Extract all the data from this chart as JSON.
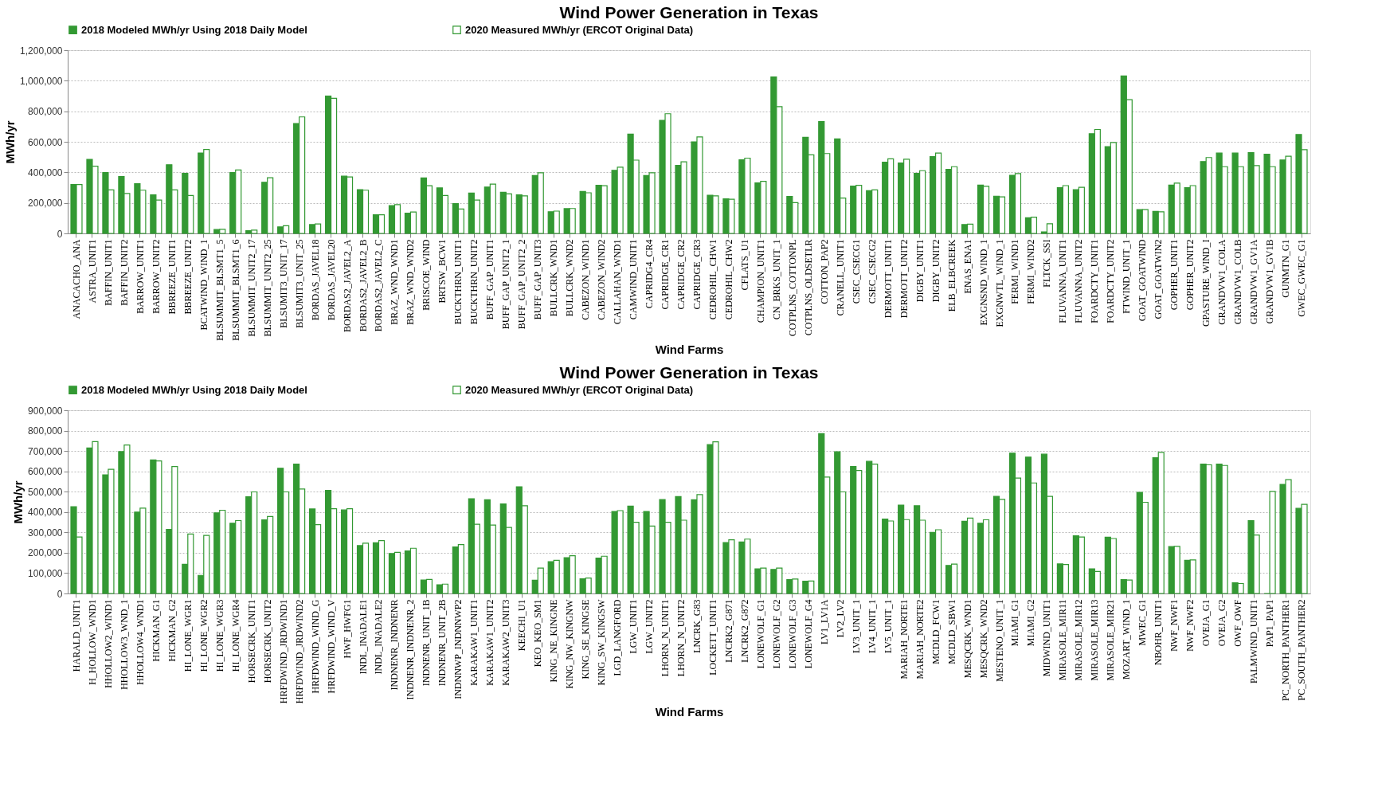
{
  "chart_data": [
    {
      "type": "bar",
      "title": "Wind Power Generation in Texas",
      "xlabel": "Wind Farms",
      "ylabel": "MWh/yr",
      "ylim": [
        0,
        1200000
      ],
      "yticks": [
        0,
        {
          "value": 200000,
          "label": "200,000"
        },
        {
          "value": 400000,
          "label": "400,000"
        },
        {
          "value": 600000,
          "label": "600,000"
        },
        {
          "value": 800000,
          "label": "800,000"
        },
        {
          "value": 1000000,
          "label": "1,000,000"
        },
        {
          "value": 1200000,
          "label": "1,200,000"
        }
      ],
      "grid": "y",
      "legend": "top",
      "categories": [
        "ANACACHO_ANA",
        "ASTRA_UNIT1",
        "BAFFIN_UNIT1",
        "BAFFIN_UNIT2",
        "BARROW_UNIT1",
        "BARROW_UNIT2",
        "BBREEZE_UNIT1",
        "BBREEZE_UNIT2",
        "BCATWIND_WIND_1",
        "BLSUMMIT_BLSMT1_5",
        "BLSUMMIT_BLSMT1_6",
        "BLSUMMIT_UNIT2_17",
        "BLSUMMIT_UNIT2_25",
        "BLSUMIT3_UNIT_17",
        "BLSUMIT3_UNIT_25",
        "BORDAS_JAVEL18",
        "BORDAS_JAVEL20",
        "BORDAS2_JAVEL2_A",
        "BORDAS2_JAVEL2_B",
        "BORDAS2_JAVEL2_C",
        "BRAZ_WND_WND1",
        "BRAZ_WND_WND2",
        "BRISCOE_WIND",
        "BRTSW_BCW1",
        "BUCKTHRN_UNIT1",
        "BUCKTHRN_UNIT2",
        "BUFF_GAP_UNIT1",
        "BUFF_GAP_UNIT2_1",
        "BUFF_GAP_UNIT2_2",
        "BUFF_GAP_UNIT3",
        "BULLCRK_WND1",
        "BULLCRK_WND2",
        "CABEZON_WIND1",
        "CABEZON_WIND2",
        "CALLAHAN_WND1",
        "CAMWIND_UNIT1",
        "CAPRIDG4_CR4",
        "CAPRIDGE_CR1",
        "CAPRIDGE_CR2",
        "CAPRIDGE_CR3",
        "CEDROHIL_CHW1",
        "CEDROHIL_CHW2",
        "CFLATS_U1",
        "CHAMPION_UNIT1",
        "CN_BRKS_UNIT_1",
        "COTPLNS_COTTONPL",
        "COTPLNS_OLDSETLR",
        "COTTON_PAP2",
        "CRANELL_UNIT1",
        "CSEC_CSECG1",
        "CSEC_CSECG2",
        "DERMOTT_UNIT1",
        "DERMOTT_UNIT2",
        "DIGBY_UNIT1",
        "DIGBY_UNIT2",
        "ELB_ELBCREEK",
        "ENAS_ENA1",
        "EXGNSND_WIND_1",
        "EXGNWTL_WIND_1",
        "FERMI_WIND1",
        "FERMI_WIND2",
        "FLTCK_SSI",
        "FLUVANNA_UNIT1",
        "FLUVANNA_UNIT2",
        "FOARDCTY_UNIT1",
        "FOARDCTY_UNIT2",
        "FTWIND_UNIT_1",
        "GOAT_GOATWIND",
        "GOAT_GOATWIN2",
        "GOPHER_UNIT1",
        "GOPHER_UNIT2",
        "GPASTURE_WIND_I",
        "GRANDVW1_COLA",
        "GRANDVW1_COLB",
        "GRANDVW1_GV1A",
        "GRANDVW1_GV1B",
        "GUNMTN_G1",
        "GWEC_GWEC_G1"
      ],
      "series": [
        {
          "name": "2018 Modeled MWh/yr Using 2018 Daily Model",
          "color": "#339933",
          "values": [
            320000,
            485000,
            398000,
            373000,
            325000,
            253000,
            450000,
            393000,
            527000,
            25000,
            398000,
            18000,
            335000,
            43000,
            720000,
            58000,
            900000,
            375000,
            287000,
            122000,
            182000,
            133000,
            363000,
            298000,
            195000,
            264000,
            304000,
            269000,
            253000,
            379000,
            142000,
            162000,
            275000,
            315000,
            413000,
            650000,
            379000,
            741000,
            445000,
            600000,
            250000,
            227000,
            482000,
            331000,
            1025000,
            242000,
            629000,
            733000,
            619000,
            310000,
            280000,
            466000,
            461000,
            394000,
            503000,
            419000,
            58000,
            316000,
            244000,
            381000,
            102000,
            10000,
            300000,
            286000,
            653000,
            568000,
            1031000,
            156000,
            144000,
            316000,
            300000,
            471000,
            526000,
            526000,
            529000,
            519000,
            481000,
            648000
          ]
        },
        {
          "name": "2020 Measured MWh/yr (ERCOT Original Data)",
          "color": "#ffffff",
          "values": [
            320000,
            440000,
            285000,
            262000,
            283000,
            218000,
            285000,
            248000,
            550000,
            27000,
            415000,
            22000,
            365000,
            50000,
            763000,
            62000,
            885000,
            370000,
            283000,
            122000,
            188000,
            140000,
            312000,
            248000,
            160000,
            218000,
            323000,
            259000,
            246000,
            397000,
            146000,
            163000,
            266000,
            312000,
            434000,
            480000,
            397000,
            784000,
            469000,
            632000,
            246000,
            224000,
            493000,
            341000,
            830000,
            202000,
            515000,
            523000,
            232000,
            315000,
            285000,
            489000,
            486000,
            411000,
            526000,
            437000,
            61000,
            308000,
            239000,
            392000,
            106000,
            63000,
            313000,
            302000,
            681000,
            595000,
            876000,
            156000,
            142000,
            329000,
            313000,
            497000,
            437000,
            437000,
            444000,
            437000,
            505000,
            548000
          ]
        }
      ]
    },
    {
      "type": "bar",
      "title": "Wind Power Generation in Texas",
      "xlabel": "Wind Farms",
      "ylabel": "MWh/yr",
      "ylim": [
        0,
        900000
      ],
      "yticks": [
        0,
        {
          "value": 100000,
          "label": "100,000"
        },
        {
          "value": 200000,
          "label": "200,000"
        },
        {
          "value": 300000,
          "label": "300,000"
        },
        {
          "value": 400000,
          "label": "400,000"
        },
        {
          "value": 500000,
          "label": "500,000"
        },
        {
          "value": 600000,
          "label": "600,000"
        },
        {
          "value": 700000,
          "label": "700,000"
        },
        {
          "value": 800000,
          "label": "800,000"
        },
        {
          "value": 900000,
          "label": "900,000"
        }
      ],
      "grid": "y",
      "legend": "top",
      "categories": [
        "HARALD_UNIT1",
        "H_HOLLOW_WND1",
        "HHOLLOW2_WIND1",
        "HHOLLOW3_WND_1",
        "HHOLLOW4_WND1",
        "HICKMAN_G1",
        "HICKMAN_G2",
        "HI_LONE_WGR1",
        "HI_LONE_WGR2",
        "HI_LONE_WGR3",
        "HI_LONE_WGR4",
        "HORSECRK_UNIT1",
        "HORSECRK_UNIT2",
        "HRFDWIND_JRDWIND1",
        "HRFDWIND_JRDWIND2",
        "HRFDWIND_WIND_G",
        "HRFDWIND_WIND_V",
        "HWF_HWFG1",
        "INDL_INADALE1",
        "INDL_INADALE2",
        "INDNENR_INDNENR",
        "INDNENR_INDNENR_2",
        "INDNENR_UNIT_1B",
        "INDNENR_UNIT_2B",
        "INDNNWP_INDNNWP2",
        "KARAKAW1_UNIT1",
        "KARAKAW1_UNIT2",
        "KARAKAW2_UNIT3",
        "KEECHI_U1",
        "KEO_KEO_SM1",
        "KING_NE_KINGNE",
        "KING_NW_KINGNW",
        "KING_SE_KINGSE",
        "KING_SW_KINGSW",
        "LGD_LANGFORD",
        "LGW_UNIT1",
        "LGW_UNIT2",
        "LHORN_N_UNIT1",
        "LHORN_N_UNIT2",
        "LNCRK_G83",
        "LOCKETT_UNIT1",
        "LNCRK2_G871",
        "LNCRK2_G872",
        "LONEWOLF_G1",
        "LONEWOLF_G2",
        "LONEWOLF_G3",
        "LONEWOLF_G4",
        "LV1_LV1A",
        "LV2_LV2",
        "LV3_UNIT_1",
        "LV4_UNIT_1",
        "LV5_UNIT_1",
        "MARIAH_NORTE1",
        "MARIAH_NORTE2",
        "MCDLD_FCW1",
        "MCDLD_SBW1",
        "MESQCRK_WND1",
        "MESQCRK_WND2",
        "MESTENO_UNIT_1",
        "MIAMI_G1",
        "MIAMI_G2",
        "MIDWIND_UNIT1",
        "MIRASOLE_MIR11",
        "MIRASOLE_MIR12",
        "MIRASOLE_MIR13",
        "MIRASOLE_MIR21",
        "MOZART_WIND_1",
        "MWEC_G1",
        "NBOHR_UNIT1",
        "NWF_NWF1",
        "NWF_NWF2",
        "OVEJA_G1",
        "OVEJA_G2",
        "OWF_OWF",
        "PALMWIND_UNIT1",
        "PAP1_PAP1",
        "PC_NORTH_PANTHER1",
        "PC_SOUTH_PANTHER2"
      ],
      "series": [
        {
          "name": "2018 Modeled MWh/yr Using 2018 Daily Model",
          "color": "#339933",
          "values": [
            426000,
            715000,
            583000,
            697000,
            400000,
            656000,
            315000,
            143000,
            89000,
            396000,
            345000,
            475000,
            362000,
            615000,
            635000,
            415000,
            506000,
            410000,
            235000,
            249000,
            196000,
            209000,
            66000,
            43000,
            229000,
            465000,
            460000,
            440000,
            524000,
            65000,
            156000,
            176000,
            72000,
            174000,
            403000,
            429000,
            403000,
            461000,
            476000,
            460000,
            731000,
            250000,
            253000,
            121000,
            118000,
            68000,
            60000,
            785000,
            696000,
            624000,
            649000,
            365000,
            434000,
            431000,
            300000,
            138000,
            355000,
            345000,
            477000,
            689000,
            670000,
            684000,
            145000,
            283000,
            121000,
            276000,
            68000,
            497000,
            667000,
            230000,
            163000,
            635000,
            635000,
            52000,
            358000,
            0,
            536000,
            418000
          ]
        },
        {
          "name": "2020 Measured MWh/yr (ERCOT Original Data)",
          "color": "#ffffff",
          "values": [
            277000,
            746000,
            610000,
            729000,
            419000,
            651000,
            624000,
            292000,
            285000,
            409000,
            358000,
            499000,
            378000,
            499000,
            513000,
            338000,
            416000,
            416000,
            247000,
            260000,
            202000,
            222000,
            69000,
            46000,
            240000,
            340000,
            336000,
            324000,
            431000,
            125000,
            163000,
            185000,
            76000,
            183000,
            407000,
            350000,
            331000,
            350000,
            360000,
            486000,
            745000,
            264000,
            267000,
            125000,
            125000,
            71000,
            61000,
            572000,
            499000,
            604000,
            635000,
            356000,
            363000,
            360000,
            313000,
            144000,
            370000,
            362000,
            462000,
            567000,
            543000,
            477000,
            142000,
            277000,
            108000,
            270000,
            66000,
            448000,
            693000,
            231000,
            165000,
            632000,
            629000,
            49000,
            287000,
            501000,
            559000,
            438000
          ]
        }
      ]
    }
  ]
}
